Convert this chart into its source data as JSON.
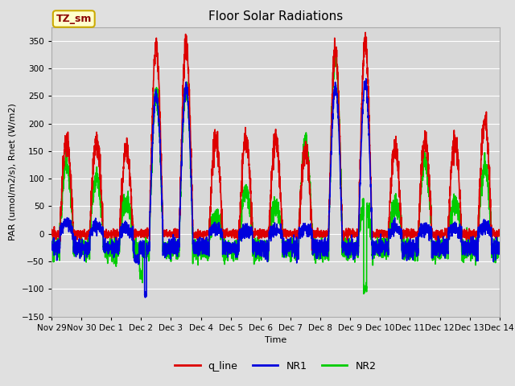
{
  "title": "Floor Solar Radiations",
  "ylabel": "PAR (umol/m2/s), Rnet (W/m2)",
  "xlabel": "Time",
  "ylim": [
    -150,
    375
  ],
  "yticks": [
    -150,
    -100,
    -50,
    0,
    50,
    100,
    150,
    200,
    250,
    300,
    350
  ],
  "xtick_labels": [
    "Nov 29",
    "Nov 30",
    "Dec 1",
    "Dec 2",
    "Dec 3",
    "Dec 4",
    "Dec 5",
    "Dec 6",
    "Dec 7",
    "Dec 8",
    "Dec 9",
    "Dec 10",
    "Dec 11",
    "Dec 12",
    "Dec 13",
    "Dec 14"
  ],
  "title_fontsize": 11,
  "axis_fontsize": 8,
  "tick_fontsize": 7.5,
  "legend_fontsize": 9,
  "line_colors": {
    "q_line": "#dd0000",
    "NR1": "#0000dd",
    "NR2": "#00cc00"
  },
  "line_widths": {
    "q_line": 1.2,
    "NR1": 1.2,
    "NR2": 1.2
  },
  "bg_color": "#e0e0e0",
  "plot_bg_color": "#d8d8d8",
  "annotation_text": "TZ_sm",
  "annotation_bg": "#ffffcc",
  "annotation_border": "#ccaa00",
  "n_points": 3600
}
